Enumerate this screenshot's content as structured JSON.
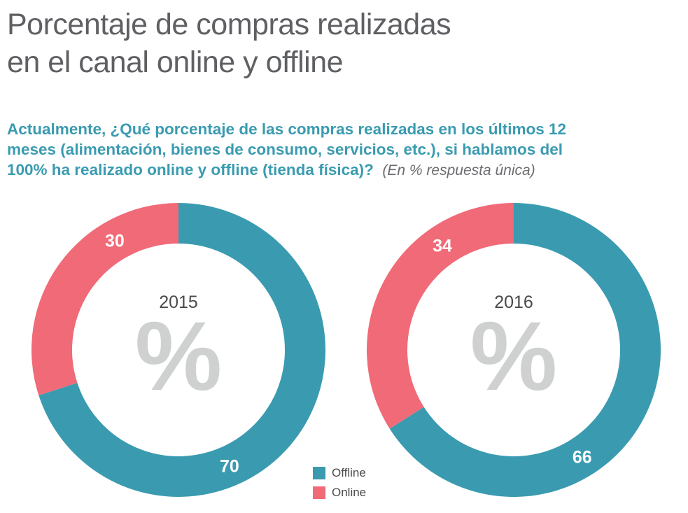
{
  "header": {
    "title_line1": "Porcentaje de compras realizadas",
    "title_line2": "en el canal online y offline"
  },
  "question": {
    "line1": "Actualmente, ¿Qué porcentaje de las compras realizadas en los últimos 12",
    "line2": "meses (alimentación, bienes de consumo, servicios, etc.), si hablamos del",
    "line3": "100% ha realizado online y offline (tienda física)?",
    "note": "(En % respuesta única)"
  },
  "colors": {
    "offline": "#3a9bb0",
    "online": "#f06a77",
    "percent_symbol": "#cfd1d1"
  },
  "chart_data": [
    {
      "type": "pie",
      "center_label": "2015",
      "center_symbol": "%",
      "series": [
        {
          "name": "Offline",
          "value": 70
        },
        {
          "name": "Online",
          "value": 30
        }
      ],
      "legend": "bottom"
    },
    {
      "type": "pie",
      "center_label": "2016",
      "center_symbol": "%",
      "series": [
        {
          "name": "Offline",
          "value": 66
        },
        {
          "name": "Online",
          "value": 34
        }
      ],
      "legend": "bottom"
    }
  ],
  "legend": {
    "items": [
      {
        "label": "Offline",
        "color_key": "offline"
      },
      {
        "label": "Online",
        "color_key": "online"
      }
    ]
  }
}
